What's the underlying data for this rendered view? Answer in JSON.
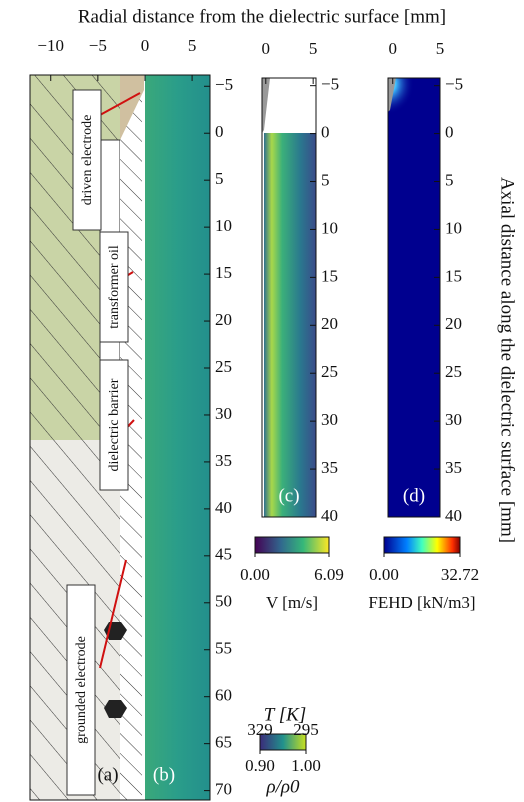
{
  "title": "Radial distance from the dielectric surface [mm]",
  "right_label": "Axial distance along the dielectric surface [mm]",
  "chart_data": [
    {
      "type": "image",
      "panel_labels": [
        "(a)",
        "(b)"
      ],
      "xlim": [
        -12.2,
        6.9
      ],
      "xticks": [
        {
          "value": -10,
          "label": "−10"
        },
        {
          "value": -5,
          "label": "−5"
        },
        0,
        5
      ],
      "ylim": [
        -6.2,
        71
      ],
      "yticks": [
        {
          "value": -5,
          "label": "−5"
        },
        0,
        5,
        10,
        15,
        20,
        25,
        30,
        35,
        40,
        45,
        50,
        55,
        60,
        65,
        70
      ],
      "annotations": [
        "driven electrode",
        "transformer oil",
        "dielectric barrier",
        "grounded electrode"
      ],
      "colorbar": {
        "label_top": "T [K]",
        "top_ticks": [
          329,
          295
        ],
        "ticks": [
          {
            "value": 0.9,
            "label": "0.90"
          },
          {
            "value": 1.0,
            "label": "1.00"
          }
        ],
        "label": "ρ/ρ0"
      }
    },
    {
      "type": "image",
      "panel_label": "(c)",
      "xlim": [
        -0.4,
        5.3
      ],
      "xticks": [
        0,
        5
      ],
      "ylim": [
        -5.8,
        40
      ],
      "yticks": [
        {
          "value": -5,
          "label": "−5"
        },
        0,
        5,
        10,
        15,
        20,
        25,
        30,
        35,
        40
      ],
      "colorbar": {
        "ticks": [
          {
            "value": 0,
            "label": "0.00"
          },
          6.09
        ],
        "label": "V [m/s]"
      }
    },
    {
      "type": "image",
      "panel_label": "(d)",
      "xlim": [
        -0.5,
        5
      ],
      "xticks": [
        0,
        5
      ],
      "ylim": [
        -5.8,
        40
      ],
      "yticks": [
        {
          "value": -5,
          "label": "−5"
        },
        0,
        5,
        10,
        15,
        20,
        25,
        30,
        35,
        40
      ],
      "colorbar": {
        "ticks": [
          {
            "value": 0,
            "label": "0.00"
          },
          32.72
        ],
        "label": "FEHD [kN/m3]"
      }
    }
  ]
}
